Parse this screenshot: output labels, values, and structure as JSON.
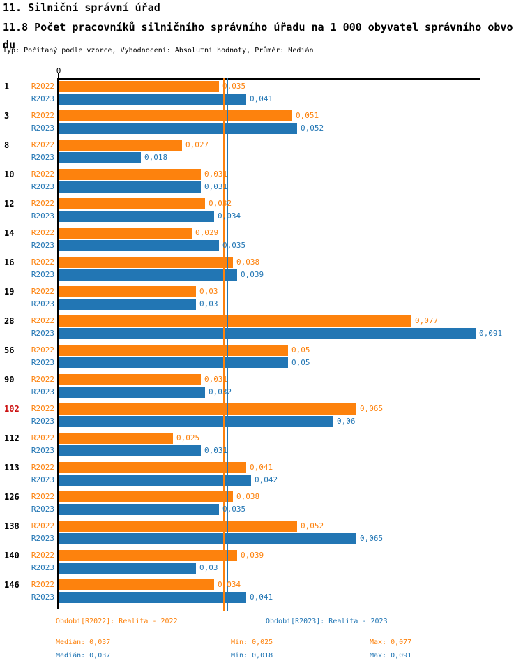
{
  "title": {
    "line1": "11. Silniční správní úřad",
    "line2": "11.8 Počet pracovníků silničního správního úřadu na 1 000 obyvatel správního obvodu",
    "subtitle": "Typ: Počítaný podle vzorce, Vyhodnocení: Absolutní hodnoty, Průměr: Medián"
  },
  "axis": {
    "zero_label": "0"
  },
  "colors": {
    "r2022": "#fd820d",
    "r2023": "#2276b4",
    "highlight": "#cc1111",
    "axis": "#000000"
  },
  "chart_data": {
    "type": "bar",
    "orientation": "horizontal",
    "xlim": [
      0,
      0.0916
    ],
    "grid": false,
    "series_labels": {
      "r2022": "R2022",
      "r2023": "R2023"
    },
    "series_names": {
      "r2022": "Realita - 2022",
      "r2023": "Realita - 2023"
    },
    "highlighted_category": "102",
    "median_r2022": 0.037,
    "median_r2023": 0.037,
    "rows": [
      {
        "category": "1",
        "r2022": 0.035,
        "r2022_label": "0,035",
        "r2023": 0.041,
        "r2023_label": "0,041"
      },
      {
        "category": "3",
        "r2022": 0.051,
        "r2022_label": "0,051",
        "r2023": 0.052,
        "r2023_label": "0,052"
      },
      {
        "category": "8",
        "r2022": 0.027,
        "r2022_label": "0,027",
        "r2023": 0.018,
        "r2023_label": "0,018"
      },
      {
        "category": "10",
        "r2022": 0.031,
        "r2022_label": "0,031",
        "r2023": 0.031,
        "r2023_label": "0,031"
      },
      {
        "category": "12",
        "r2022": 0.032,
        "r2022_label": "0,032",
        "r2023": 0.034,
        "r2023_label": "0,034"
      },
      {
        "category": "14",
        "r2022": 0.029,
        "r2022_label": "0,029",
        "r2023": 0.035,
        "r2023_label": "0,035"
      },
      {
        "category": "16",
        "r2022": 0.038,
        "r2022_label": "0,038",
        "r2023": 0.039,
        "r2023_label": "0,039"
      },
      {
        "category": "19",
        "r2022": 0.03,
        "r2022_label": "0,03",
        "r2023": 0.03,
        "r2023_label": "0,03"
      },
      {
        "category": "28",
        "r2022": 0.077,
        "r2022_label": "0,077",
        "r2023": 0.091,
        "r2023_label": "0,091"
      },
      {
        "category": "56",
        "r2022": 0.05,
        "r2022_label": "0,05",
        "r2023": 0.05,
        "r2023_label": "0,05"
      },
      {
        "category": "90",
        "r2022": 0.031,
        "r2022_label": "0,031",
        "r2023": 0.032,
        "r2023_label": "0,032"
      },
      {
        "category": "102",
        "r2022": 0.065,
        "r2022_label": "0,065",
        "r2023": 0.06,
        "r2023_label": "0,06"
      },
      {
        "category": "112",
        "r2022": 0.025,
        "r2022_label": "0,025",
        "r2023": 0.031,
        "r2023_label": "0,031"
      },
      {
        "category": "113",
        "r2022": 0.041,
        "r2022_label": "0,041",
        "r2023": 0.042,
        "r2023_label": "0,042"
      },
      {
        "category": "126",
        "r2022": 0.038,
        "r2022_label": "0,038",
        "r2023": 0.035,
        "r2023_label": "0,035"
      },
      {
        "category": "138",
        "r2022": 0.052,
        "r2022_label": "0,052",
        "r2023": 0.065,
        "r2023_label": "0,065"
      },
      {
        "category": "140",
        "r2022": 0.039,
        "r2022_label": "0,039",
        "r2023": 0.03,
        "r2023_label": "0,03"
      },
      {
        "category": "146",
        "r2022": 0.034,
        "r2022_label": "0,034",
        "r2023": 0.041,
        "r2023_label": "0,041"
      }
    ]
  },
  "legend": {
    "r2022_title": "Období[R2022]: Realita - 2022",
    "r2023_title": "Období[R2023]: Realita - 2023",
    "r2022_stats": {
      "median": "Medián: 0,037",
      "min": "Min: 0,025",
      "max": "Max: 0,077"
    },
    "r2023_stats": {
      "median": "Medián: 0,037",
      "min": "Min: 0,018",
      "max": "Max: 0,091"
    }
  }
}
